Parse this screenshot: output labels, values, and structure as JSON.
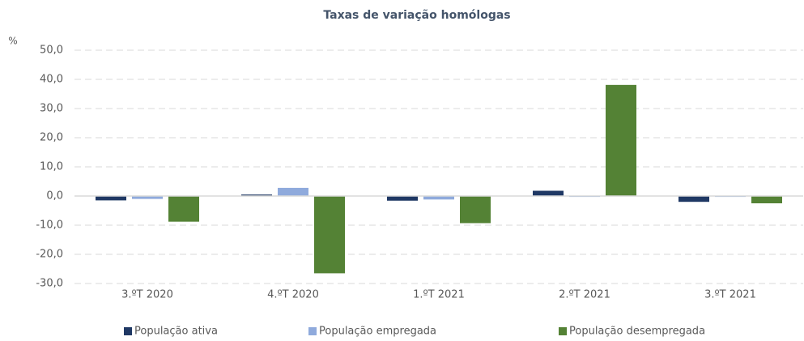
{
  "chart_data": {
    "type": "bar",
    "title": "Taxas de variação homólogas",
    "y_label": "%",
    "categories": [
      "3.ºT 2020",
      "4.ºT 2020",
      "1.ºT 2021",
      "2.ºT 2021",
      "3.ºT 2021"
    ],
    "series": [
      {
        "name": "População ativa",
        "color": "#1f3864",
        "values": [
          -1.5,
          0.5,
          -1.6,
          1.8,
          -2.0
        ]
      },
      {
        "name": "População empregada",
        "color": "#8faadc",
        "values": [
          -1.0,
          2.8,
          -1.2,
          -0.3,
          -0.3
        ]
      },
      {
        "name": "População desempregada",
        "color": "#548235",
        "values": [
          -8.8,
          -26.5,
          -9.3,
          38.1,
          -2.5
        ]
      }
    ],
    "ylim": [
      -30,
      50
    ],
    "yticks": [
      {
        "value": -30,
        "label": "-30,0"
      },
      {
        "value": -20,
        "label": "-20,0"
      },
      {
        "value": -10,
        "label": "-10,0"
      },
      {
        "value": 0,
        "label": "0,0"
      },
      {
        "value": 10,
        "label": "10,0"
      },
      {
        "value": 20,
        "label": "20,0"
      },
      {
        "value": 30,
        "label": "30,0"
      },
      {
        "value": 40,
        "label": "40,0"
      },
      {
        "value": 50,
        "label": "50,0"
      }
    ],
    "grid": true,
    "legend": "bottom"
  }
}
